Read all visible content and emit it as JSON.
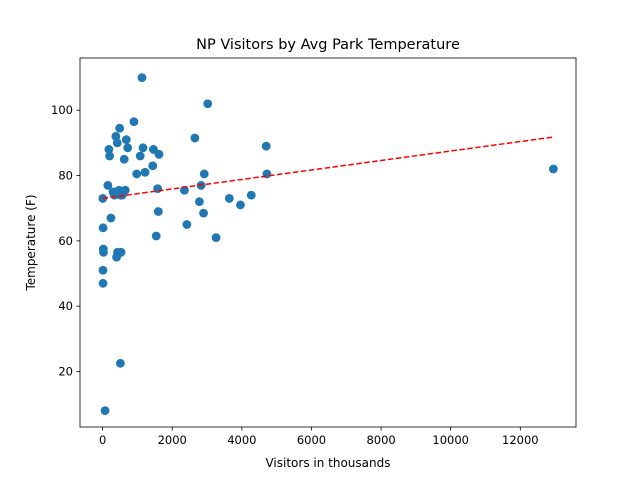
{
  "chart_data": {
    "type": "scatter",
    "title": "NP Visitors by Avg Park Temperature",
    "xlabel": "Visitors in thousands",
    "ylabel": "Temperature (F)",
    "xlim": [
      -650,
      13600
    ],
    "ylim": [
      3,
      116
    ],
    "xticks": [
      0,
      2000,
      4000,
      6000,
      8000,
      10000,
      12000
    ],
    "yticks": [
      20,
      40,
      60,
      80,
      100
    ],
    "grid": false,
    "colors": {
      "points": "#1f77b4",
      "trendline": "#ff0000",
      "axes": "#000000"
    },
    "points": [
      {
        "x": 5,
        "y": 73
      },
      {
        "x": 15,
        "y": 64
      },
      {
        "x": 20,
        "y": 57.5
      },
      {
        "x": 25,
        "y": 56.5
      },
      {
        "x": 10,
        "y": 51
      },
      {
        "x": 12,
        "y": 47
      },
      {
        "x": 70,
        "y": 8
      },
      {
        "x": 150,
        "y": 77
      },
      {
        "x": 180,
        "y": 88
      },
      {
        "x": 200,
        "y": 86
      },
      {
        "x": 240,
        "y": 67
      },
      {
        "x": 300,
        "y": 75
      },
      {
        "x": 340,
        "y": 74
      },
      {
        "x": 380,
        "y": 92
      },
      {
        "x": 420,
        "y": 90
      },
      {
        "x": 400,
        "y": 55
      },
      {
        "x": 430,
        "y": 56.5
      },
      {
        "x": 490,
        "y": 94.5
      },
      {
        "x": 470,
        "y": 75.5
      },
      {
        "x": 520,
        "y": 74
      },
      {
        "x": 530,
        "y": 56.5
      },
      {
        "x": 510,
        "y": 22.5
      },
      {
        "x": 560,
        "y": 74
      },
      {
        "x": 620,
        "y": 85
      },
      {
        "x": 650,
        "y": 75.5
      },
      {
        "x": 680,
        "y": 91
      },
      {
        "x": 720,
        "y": 88.5
      },
      {
        "x": 900,
        "y": 96.5
      },
      {
        "x": 980,
        "y": 80.5
      },
      {
        "x": 1080,
        "y": 86
      },
      {
        "x": 1130,
        "y": 110
      },
      {
        "x": 1160,
        "y": 88.5
      },
      {
        "x": 1220,
        "y": 81
      },
      {
        "x": 1440,
        "y": 83
      },
      {
        "x": 1460,
        "y": 88
      },
      {
        "x": 1540,
        "y": 61.5
      },
      {
        "x": 1580,
        "y": 76
      },
      {
        "x": 1600,
        "y": 69
      },
      {
        "x": 1620,
        "y": 86.5
      },
      {
        "x": 2350,
        "y": 75.5
      },
      {
        "x": 2420,
        "y": 65
      },
      {
        "x": 2650,
        "y": 91.5
      },
      {
        "x": 2780,
        "y": 72
      },
      {
        "x": 2830,
        "y": 77
      },
      {
        "x": 2900,
        "y": 68.5
      },
      {
        "x": 2920,
        "y": 80.5
      },
      {
        "x": 3020,
        "y": 102
      },
      {
        "x": 3260,
        "y": 61
      },
      {
        "x": 3640,
        "y": 73
      },
      {
        "x": 3960,
        "y": 71
      },
      {
        "x": 4270,
        "y": 74
      },
      {
        "x": 4700,
        "y": 89
      },
      {
        "x": 4720,
        "y": 80.5
      },
      {
        "x": 12950,
        "y": 82
      }
    ],
    "trendline": {
      "style": "dashed",
      "x": [
        0,
        12950
      ],
      "y": [
        73,
        91.8
      ]
    }
  }
}
